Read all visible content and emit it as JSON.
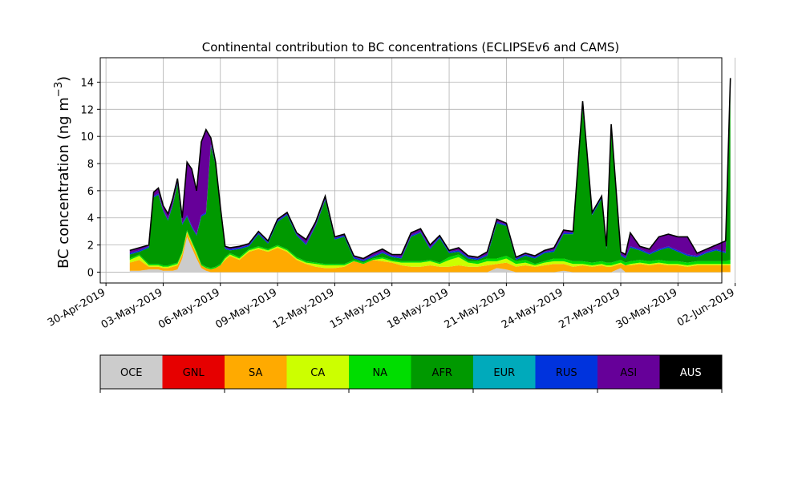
{
  "chart_data": {
    "type": "area",
    "stacked": true,
    "title": "Continental contribution to BC concentrations (ECLIPSEv6 and CAMS)",
    "ylabel": "BC concentration (ng m",
    "ylabel_sup": "−3",
    "ylabel_close": ")",
    "xlabel": "",
    "ylim": [
      -0.8,
      15.8
    ],
    "xlim_days": [
      -0.3,
      32.3
    ],
    "grid": true,
    "x_axis_type": "date",
    "x_ticks": [
      {
        "day": 0,
        "label": "30-Apr-2019"
      },
      {
        "day": 3,
        "label": "03-May-2019"
      },
      {
        "day": 6,
        "label": "06-May-2019"
      },
      {
        "day": 9,
        "label": "09-May-2019"
      },
      {
        "day": 12,
        "label": "12-May-2019"
      },
      {
        "day": 15,
        "label": "15-May-2019"
      },
      {
        "day": 18,
        "label": "18-May-2019"
      },
      {
        "day": 21,
        "label": "21-May-2019"
      },
      {
        "day": 24,
        "label": "24-May-2019"
      },
      {
        "day": 27,
        "label": "27-May-2019"
      },
      {
        "day": 30,
        "label": "30-May-2019"
      },
      {
        "day": 33,
        "label": "02-Jun-2019"
      }
    ],
    "y_ticks": [
      0,
      2,
      4,
      6,
      8,
      10,
      12,
      14
    ],
    "x": [
      "01-May-2019 06:00",
      "01-May-2019 18:00",
      "02-May-2019 06:00",
      "02-May-2019 12:00",
      "02-May-2019 18:00",
      "03-May-2019 00:00",
      "03-May-2019 06:00",
      "03-May-2019 12:00",
      "03-May-2019 18:00",
      "04-May-2019 00:00",
      "04-May-2019 06:00",
      "04-May-2019 12:00",
      "04-May-2019 18:00",
      "05-May-2019 00:00",
      "05-May-2019 06:00",
      "05-May-2019 12:00",
      "05-May-2019 18:00",
      "06-May-2019 00:00",
      "06-May-2019 06:00",
      "06-May-2019 12:00",
      "07-May-2019 00:00",
      "07-May-2019 12:00",
      "08-May-2019 00:00",
      "08-May-2019 12:00",
      "09-May-2019 00:00",
      "09-May-2019 12:00",
      "10-May-2019 00:00",
      "10-May-2019 12:00",
      "11-May-2019 00:00",
      "11-May-2019 12:00",
      "12-May-2019 00:00",
      "12-May-2019 12:00",
      "13-May-2019 00:00",
      "13-May-2019 12:00",
      "14-May-2019 00:00",
      "14-May-2019 12:00",
      "15-May-2019 00:00",
      "15-May-2019 12:00",
      "16-May-2019 00:00",
      "16-May-2019 12:00",
      "17-May-2019 00:00",
      "17-May-2019 12:00",
      "18-May-2019 00:00",
      "18-May-2019 12:00",
      "19-May-2019 00:00",
      "19-May-2019 12:00",
      "20-May-2019 00:00",
      "20-May-2019 12:00",
      "21-May-2019 00:00",
      "21-May-2019 12:00",
      "22-May-2019 00:00",
      "22-May-2019 12:00",
      "23-May-2019 00:00",
      "23-May-2019 12:00",
      "24-May-2019 00:00",
      "24-May-2019 12:00",
      "25-May-2019 00:00",
      "25-May-2019 12:00",
      "26-May-2019 00:00",
      "26-May-2019 06:00",
      "26-May-2019 12:00",
      "27-May-2019 00:00",
      "27-May-2019 06:00",
      "27-May-2019 12:00",
      "28-May-2019 00:00",
      "28-May-2019 12:00",
      "29-May-2019 00:00",
      "29-May-2019 12:00",
      "30-May-2019 00:00",
      "30-May-2019 12:00",
      "31-May-2019 00:00",
      "31-May-2019 12:00",
      "01-Jun-2019 00:00",
      "01-Jun-2019 12:00",
      "01-Jun-2019 18:00"
    ],
    "series": [
      {
        "name": "OCE",
        "color": "#cccccc",
        "values": [
          0.1,
          0.1,
          0.2,
          0.2,
          0.2,
          0.1,
          0.1,
          0.1,
          0.2,
          1.0,
          2.6,
          1.8,
          1.0,
          0.3,
          0.1,
          0.0,
          0.0,
          0.0,
          0.0,
          0.0,
          0.0,
          0.0,
          0.0,
          0.0,
          0.0,
          0.0,
          0.0,
          0.0,
          0.0,
          0.0,
          0.0,
          0.0,
          0.0,
          0.0,
          0.0,
          0.0,
          0.0,
          0.0,
          0.0,
          0.0,
          0.0,
          0.0,
          0.0,
          0.0,
          0.0,
          0.0,
          0.0,
          0.3,
          0.2,
          0.0,
          0.0,
          0.0,
          0.0,
          0.0,
          0.1,
          0.0,
          0.0,
          0.0,
          0.0,
          0.0,
          0.0,
          0.3,
          0.0,
          0.0,
          0.0,
          0.0,
          0.0,
          0.0,
          0.0,
          0.0,
          0.0,
          0.0,
          0.0,
          0.0,
          0.0
        ]
      },
      {
        "name": "GNL",
        "color": "#e60000",
        "values": [
          0.0,
          0.0,
          0.0,
          0.0,
          0.0,
          0.0,
          0.0,
          0.0,
          0.0,
          0.0,
          0.0,
          0.0,
          0.0,
          0.0,
          0.0,
          0.0,
          0.0,
          0.0,
          0.0,
          0.0,
          0.0,
          0.0,
          0.0,
          0.0,
          0.0,
          0.0,
          0.0,
          0.0,
          0.0,
          0.0,
          0.0,
          0.0,
          0.0,
          0.0,
          0.0,
          0.0,
          0.0,
          0.0,
          0.0,
          0.0,
          0.0,
          0.0,
          0.0,
          0.0,
          0.0,
          0.0,
          0.0,
          0.0,
          0.0,
          0.0,
          0.0,
          0.0,
          0.0,
          0.0,
          0.0,
          0.0,
          0.0,
          0.0,
          0.0,
          0.0,
          0.0,
          0.0,
          0.0,
          0.0,
          0.0,
          0.0,
          0.0,
          0.0,
          0.0,
          0.0,
          0.0,
          0.0,
          0.0,
          0.0,
          0.0
        ]
      },
      {
        "name": "SA",
        "color": "#ffaa00",
        "values": [
          0.6,
          0.8,
          0.2,
          0.2,
          0.2,
          0.2,
          0.2,
          0.3,
          0.3,
          0.3,
          0.3,
          0.3,
          0.3,
          0.2,
          0.2,
          0.2,
          0.3,
          0.5,
          0.9,
          1.2,
          0.9,
          1.5,
          1.7,
          1.5,
          1.8,
          1.5,
          0.9,
          0.6,
          0.4,
          0.3,
          0.3,
          0.4,
          0.8,
          0.6,
          0.9,
          0.8,
          0.7,
          0.5,
          0.4,
          0.4,
          0.5,
          0.4,
          0.4,
          0.5,
          0.4,
          0.4,
          0.5,
          0.3,
          0.5,
          0.4,
          0.5,
          0.4,
          0.5,
          0.6,
          0.5,
          0.4,
          0.5,
          0.4,
          0.5,
          0.4,
          0.4,
          0.3,
          0.5,
          0.5,
          0.6,
          0.5,
          0.6,
          0.5,
          0.5,
          0.4,
          0.5,
          0.5,
          0.5,
          0.5,
          0.5
        ]
      },
      {
        "name": "CA",
        "color": "#ccff00",
        "values": [
          0.2,
          0.3,
          0.1,
          0.1,
          0.1,
          0.1,
          0.1,
          0.1,
          0.1,
          0.1,
          0.1,
          0.1,
          0.1,
          0.0,
          0.0,
          0.0,
          0.0,
          0.0,
          0.1,
          0.1,
          0.1,
          0.1,
          0.1,
          0.1,
          0.1,
          0.1,
          0.1,
          0.1,
          0.2,
          0.2,
          0.2,
          0.1,
          0.0,
          0.0,
          0.0,
          0.2,
          0.1,
          0.2,
          0.3,
          0.3,
          0.3,
          0.2,
          0.5,
          0.6,
          0.3,
          0.2,
          0.3,
          0.2,
          0.3,
          0.2,
          0.2,
          0.1,
          0.2,
          0.2,
          0.2,
          0.2,
          0.1,
          0.1,
          0.1,
          0.1,
          0.1,
          0.1,
          0.0,
          0.1,
          0.1,
          0.1,
          0.1,
          0.1,
          0.1,
          0.1,
          0.1,
          0.1,
          0.1,
          0.1,
          0.1
        ]
      },
      {
        "name": "NA",
        "color": "#00dd00",
        "values": [
          0.1,
          0.1,
          0.1,
          0.1,
          0.1,
          0.1,
          0.1,
          0.1,
          0.1,
          0.1,
          0.1,
          0.1,
          0.1,
          0.1,
          0.1,
          0.1,
          0.1,
          0.1,
          0.1,
          0.1,
          0.1,
          0.1,
          0.1,
          0.1,
          0.1,
          0.1,
          0.1,
          0.1,
          0.1,
          0.1,
          0.1,
          0.1,
          0.1,
          0.1,
          0.1,
          0.1,
          0.1,
          0.1,
          0.1,
          0.1,
          0.1,
          0.1,
          0.2,
          0.2,
          0.1,
          0.2,
          0.2,
          0.2,
          0.2,
          0.2,
          0.2,
          0.1,
          0.1,
          0.2,
          0.2,
          0.2,
          0.2,
          0.2,
          0.2,
          0.2,
          0.2,
          0.2,
          0.2,
          0.2,
          0.2,
          0.2,
          0.2,
          0.2,
          0.2,
          0.2,
          0.2,
          0.2,
          0.2,
          0.2,
          0.3
        ]
      },
      {
        "name": "AFR",
        "color": "#009900",
        "values": [
          0.3,
          0.2,
          1.2,
          4.9,
          5.1,
          4.0,
          3.3,
          4.3,
          5.8,
          2.0,
          1.0,
          1.0,
          1.2,
          3.5,
          3.9,
          9.0,
          7.5,
          4.0,
          0.6,
          0.2,
          0.6,
          0.2,
          0.9,
          0.4,
          1.7,
          2.5,
          1.6,
          1.2,
          2.7,
          4.7,
          1.8,
          2.0,
          0.1,
          0.1,
          0.1,
          0.3,
          0.2,
          0.2,
          1.8,
          2.1,
          0.8,
          1.8,
          0.3,
          0.2,
          0.2,
          0.1,
          0.2,
          2.6,
          2.2,
          0.1,
          0.3,
          0.4,
          0.6,
          0.5,
          1.8,
          2.0,
          11.3,
          3.5,
          4.6,
          1.0,
          10.0,
          0.3,
          0.3,
          1.0,
          0.7,
          0.5,
          0.7,
          1.0,
          0.7,
          0.5,
          0.3,
          0.6,
          0.8,
          0.6,
          12.8
        ]
      },
      {
        "name": "EUR",
        "color": "#00aabb",
        "values": [
          0.0,
          0.0,
          0.0,
          0.0,
          0.0,
          0.0,
          0.0,
          0.0,
          0.0,
          0.0,
          0.0,
          0.0,
          0.0,
          0.0,
          0.0,
          0.0,
          0.0,
          0.0,
          0.0,
          0.0,
          0.0,
          0.0,
          0.0,
          0.0,
          0.0,
          0.0,
          0.0,
          0.0,
          0.0,
          0.0,
          0.0,
          0.0,
          0.0,
          0.0,
          0.0,
          0.0,
          0.0,
          0.0,
          0.0,
          0.0,
          0.0,
          0.0,
          0.0,
          0.0,
          0.0,
          0.0,
          0.0,
          0.0,
          0.0,
          0.0,
          0.0,
          0.0,
          0.0,
          0.0,
          0.0,
          0.0,
          0.0,
          0.0,
          0.0,
          0.0,
          0.0,
          0.0,
          0.0,
          0.0,
          0.0,
          0.0,
          0.0,
          0.0,
          0.0,
          0.0,
          0.0,
          0.0,
          0.0,
          0.0,
          0.0
        ]
      },
      {
        "name": "RUS",
        "color": "#0033dd",
        "values": [
          0.1,
          0.1,
          0.1,
          0.1,
          0.1,
          0.1,
          0.1,
          0.1,
          0.1,
          0.1,
          0.1,
          0.1,
          0.1,
          0.1,
          0.1,
          0.1,
          0.1,
          0.1,
          0.1,
          0.1,
          0.1,
          0.1,
          0.1,
          0.1,
          0.1,
          0.1,
          0.1,
          0.1,
          0.1,
          0.1,
          0.1,
          0.1,
          0.1,
          0.1,
          0.1,
          0.1,
          0.1,
          0.1,
          0.1,
          0.1,
          0.1,
          0.1,
          0.1,
          0.1,
          0.1,
          0.1,
          0.1,
          0.1,
          0.1,
          0.1,
          0.1,
          0.1,
          0.1,
          0.1,
          0.1,
          0.1,
          0.1,
          0.1,
          0.1,
          0.1,
          0.1,
          0.1,
          0.1,
          0.1,
          0.1,
          0.1,
          0.1,
          0.1,
          0.1,
          0.1,
          0.1,
          0.1,
          0.1,
          0.1,
          0.1
        ]
      },
      {
        "name": "ASI",
        "color": "#660099",
        "values": [
          0.2,
          0.2,
          0.1,
          0.3,
          0.4,
          0.3,
          0.4,
          0.4,
          0.3,
          0.4,
          3.9,
          4.2,
          3.2,
          5.4,
          6.1,
          0.5,
          0.1,
          0.1,
          0.1,
          0.1,
          0.1,
          0.1,
          0.1,
          0.1,
          0.1,
          0.1,
          0.1,
          0.3,
          0.2,
          0.2,
          0.1,
          0.1,
          0.1,
          0.1,
          0.2,
          0.2,
          0.1,
          0.2,
          0.2,
          0.2,
          0.2,
          0.1,
          0.1,
          0.2,
          0.1,
          0.1,
          0.2,
          0.2,
          0.1,
          0.1,
          0.1,
          0.1,
          0.1,
          0.2,
          0.2,
          0.1,
          0.4,
          0.1,
          0.1,
          0.1,
          0.1,
          0.2,
          0.2,
          1.0,
          0.2,
          0.3,
          0.9,
          0.9,
          1.0,
          1.3,
          0.2,
          0.2,
          0.3,
          0.8,
          0.5
        ]
      },
      {
        "name": "AUS",
        "color": "#000000",
        "values": [
          0.0,
          0.0,
          0.0,
          0.0,
          0.0,
          0.0,
          0.0,
          0.0,
          0.0,
          0.0,
          0.0,
          0.0,
          0.0,
          0.0,
          0.0,
          0.0,
          0.0,
          0.0,
          0.0,
          0.0,
          0.0,
          0.0,
          0.0,
          0.0,
          0.0,
          0.0,
          0.0,
          0.0,
          0.0,
          0.0,
          0.0,
          0.0,
          0.0,
          0.0,
          0.0,
          0.0,
          0.0,
          0.0,
          0.0,
          0.0,
          0.0,
          0.0,
          0.0,
          0.0,
          0.0,
          0.0,
          0.0,
          0.0,
          0.0,
          0.0,
          0.0,
          0.0,
          0.0,
          0.0,
          0.0,
          0.0,
          0.0,
          0.0,
          0.0,
          0.0,
          0.0,
          0.0,
          0.0,
          0.0,
          0.0,
          0.0,
          0.0,
          0.0,
          0.0,
          0.0,
          0.0,
          0.0,
          0.0,
          0.0,
          0.0
        ]
      }
    ]
  }
}
